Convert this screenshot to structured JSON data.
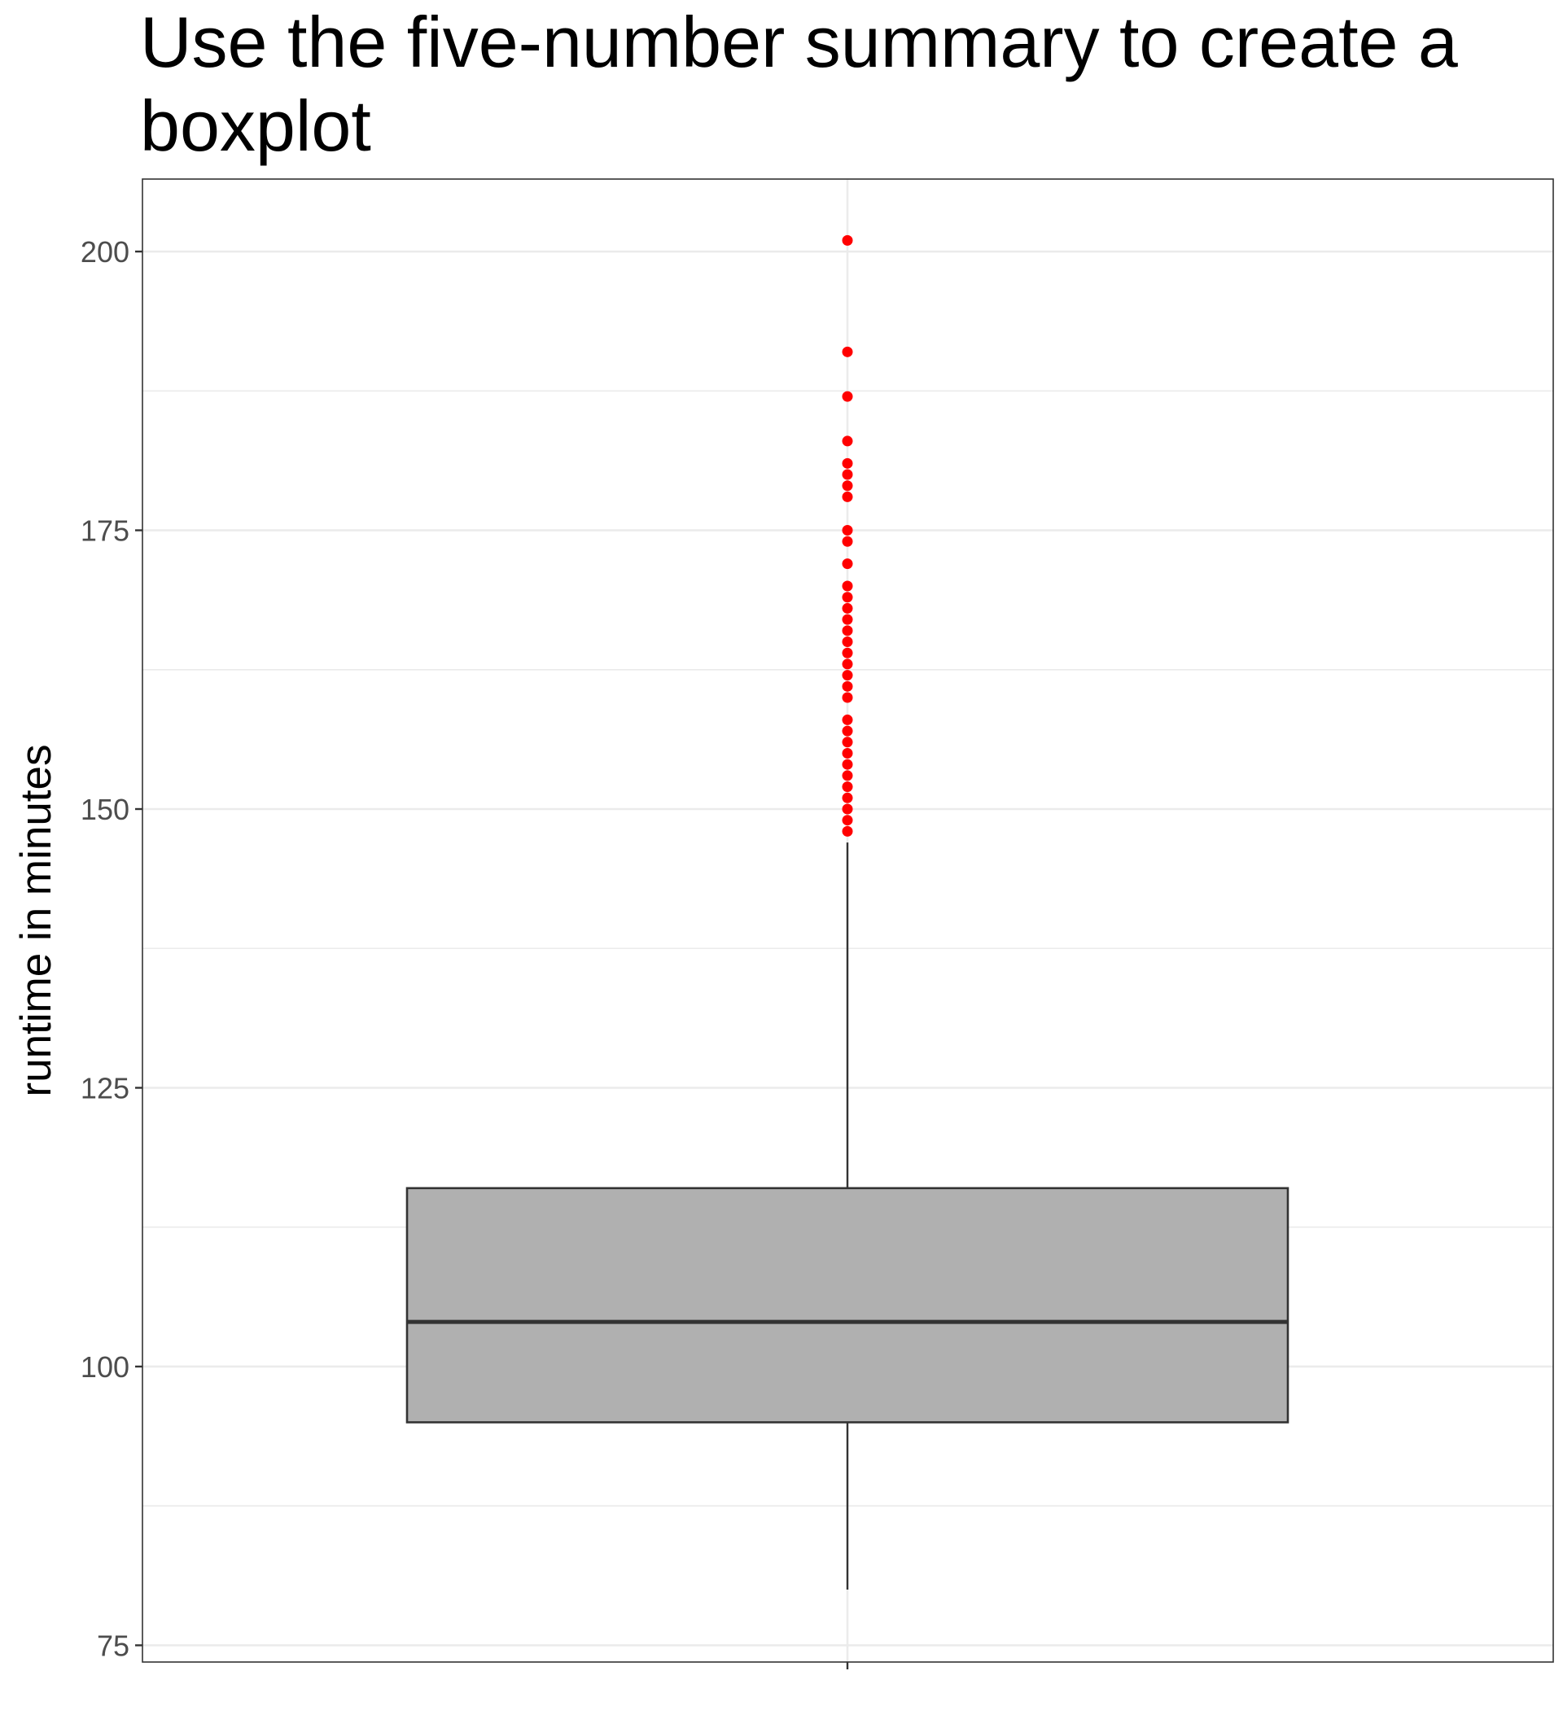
{
  "chart_data": {
    "type": "boxplot",
    "title": "Use the five-number summary to create a boxplot",
    "xlabel": "",
    "ylabel": "runtime in minutes",
    "ylim": [
      73.5,
      206.5
    ],
    "yticks": [
      75,
      100,
      125,
      150,
      175,
      200
    ],
    "grid": true,
    "legend": "none",
    "box": {
      "min": 80,
      "q1": 95,
      "median": 104,
      "q3": 116,
      "max": 147
    },
    "outliers": [
      148,
      149,
      150,
      151,
      152,
      153,
      154,
      155,
      156,
      157,
      158,
      160,
      161,
      162,
      163,
      164,
      165,
      166,
      167,
      168,
      169,
      170,
      172,
      174,
      175,
      178,
      179,
      180,
      181,
      183,
      187,
      191,
      201
    ],
    "colors": {
      "box_fill": "#b0b0b0",
      "box_line": "#333333",
      "outlier": "#ff0000",
      "grid": "#ebebeb",
      "panel_border": "#333333"
    }
  }
}
